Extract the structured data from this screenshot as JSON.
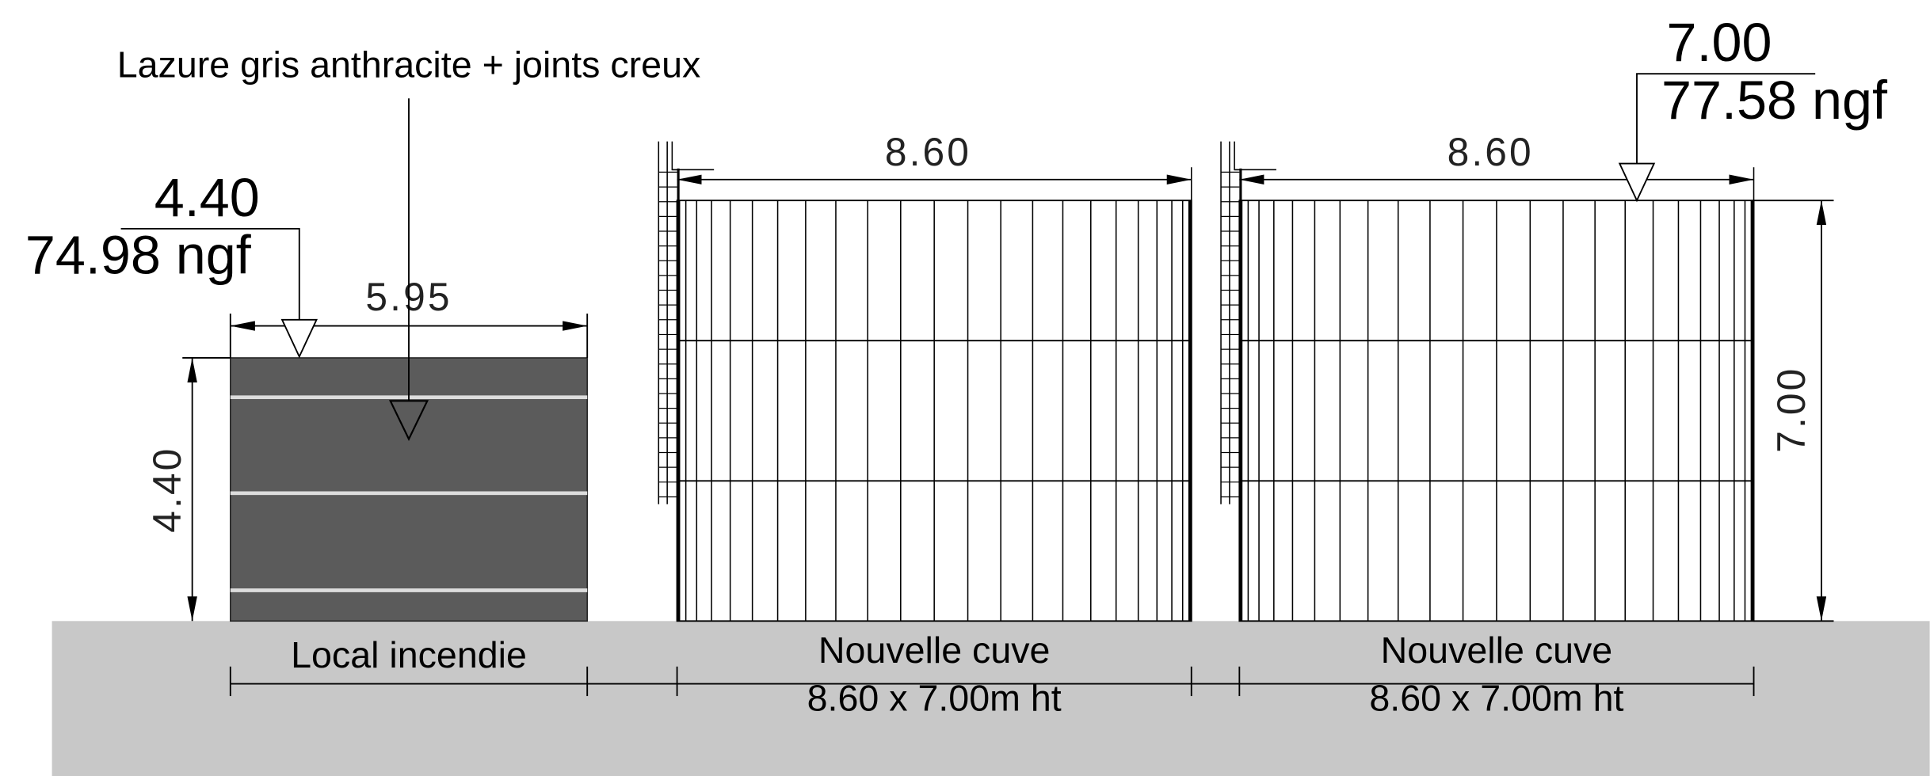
{
  "annotation": "Lazure gris anthracite + joints creux",
  "local": {
    "level": "4.40",
    "ngf": "74.98 ngf",
    "width": "5.95",
    "height": "4.40",
    "label": "Local incendie"
  },
  "tank_level": {
    "level": "7.00",
    "ngf": "77.58 ngf"
  },
  "tank_height": "7.00",
  "tanks": [
    {
      "width": "8.60",
      "label": "Nouvelle cuve",
      "size": "8.60 x 7.00m ht"
    },
    {
      "width": "8.60",
      "label": "Nouvelle cuve",
      "size": "8.60 x 7.00m ht"
    }
  ]
}
